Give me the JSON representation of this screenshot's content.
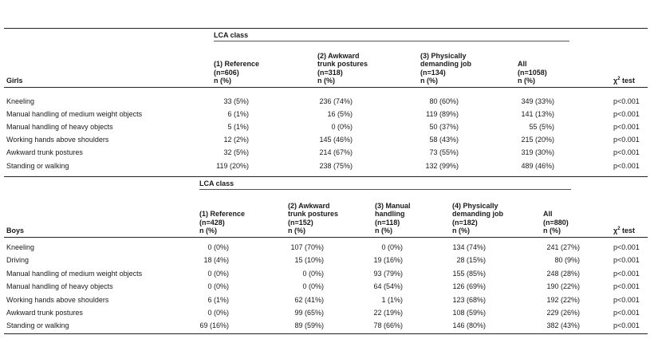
{
  "girls": {
    "section_label": "Girls",
    "lca_label": "LCA class",
    "columns": [
      {
        "lines": [
          "(1) Reference",
          "(n=606)",
          "n (%)"
        ]
      },
      {
        "lines": [
          "(2) Awkward",
          "trunk postures",
          "(n=318)",
          "n (%)"
        ]
      },
      {
        "lines": [
          "(3) Physically",
          "demanding job",
          "(n=134)",
          "n (%)"
        ]
      },
      {
        "lines": [
          "All",
          "(n=1058)",
          "n (%)"
        ]
      }
    ],
    "test_label": "χ",
    "test_sup": "2",
    "test_suffix": " test",
    "rows": [
      {
        "label": "Kneeling",
        "values": [
          "33 (5%)",
          "236 (74%)",
          "80 (60%)",
          "349 (33%)"
        ],
        "p": "p<0.001"
      },
      {
        "label": "Manual handling of medium weight objects",
        "values": [
          "6 (1%)",
          "16 (5%)",
          "119 (89%)",
          "141 (13%)"
        ],
        "p": "p<0.001"
      },
      {
        "label": "Manual handling of heavy objects",
        "values": [
          "5 (1%)",
          "0 (0%)",
          "50 (37%)",
          "55 (5%)"
        ],
        "p": "p<0.001"
      },
      {
        "label": "Working hands above shoulders",
        "values": [
          "12 (2%)",
          "145 (46%)",
          "58 (43%)",
          "215 (20%)"
        ],
        "p": "p<0.001"
      },
      {
        "label": "Awkward trunk postures",
        "values": [
          "32 (5%)",
          "214 (67%)",
          "73 (55%)",
          "319 (30%)"
        ],
        "p": "p<0.001"
      },
      {
        "label": "Standing or walking",
        "values": [
          "119 (20%)",
          "238 (75%)",
          "132 (99%)",
          "489 (46%)"
        ],
        "p": "p<0.001"
      }
    ]
  },
  "boys": {
    "section_label": "Boys",
    "lca_label": "LCA class",
    "columns": [
      {
        "lines": [
          "(1) Reference",
          "(n=428)",
          "n (%)"
        ]
      },
      {
        "lines": [
          "(2) Awkward",
          "trunk postures",
          "(n=152)",
          "n (%)"
        ]
      },
      {
        "lines": [
          "(3) Manual",
          "handling",
          "(n=118)",
          "n (%)"
        ]
      },
      {
        "lines": [
          "(4) Physically",
          "demanding job",
          "(n=182)",
          "n (%)"
        ]
      },
      {
        "lines": [
          "All",
          "(n=880)",
          "n (%)"
        ]
      }
    ],
    "test_label": "χ",
    "test_sup": "2",
    "test_suffix": " test",
    "rows": [
      {
        "label": "Kneeling",
        "values": [
          "0 (0%)",
          "107 (70%)",
          "0 (0%)",
          "134 (74%)",
          "241 (27%)"
        ],
        "p": "p<0.001"
      },
      {
        "label": "Driving",
        "values": [
          "18 (4%)",
          "15 (10%)",
          "19 (16%)",
          "28 (15%)",
          "80 (9%)"
        ],
        "p": "p<0.001"
      },
      {
        "label": "Manual handling of medium weight objects",
        "values": [
          "0 (0%)",
          "0 (0%)",
          "93 (79%)",
          "155 (85%)",
          "248 (28%)"
        ],
        "p": "p<0.001"
      },
      {
        "label": "Manual handling of heavy objects",
        "values": [
          "0 (0%)",
          "0 (0%)",
          "64 (54%)",
          "126 (69%)",
          "190 (22%)"
        ],
        "p": "p<0.001"
      },
      {
        "label": "Working hands above shoulders",
        "values": [
          "6 (1%)",
          "62 (41%)",
          "1 (1%)",
          "123 (68%)",
          "192 (22%)"
        ],
        "p": "p<0.001"
      },
      {
        "label": "Awkward trunk postures",
        "values": [
          "0 (0%)",
          "99 (65%)",
          "22 (19%)",
          "108 (59%)",
          "229 (26%)"
        ],
        "p": "p<0.001"
      },
      {
        "label": "Standing or walking",
        "values": [
          "69 (16%)",
          "89 (59%)",
          "78 (66%)",
          "146 (80%)",
          "382 (43%)"
        ],
        "p": "p<0.001"
      }
    ]
  }
}
